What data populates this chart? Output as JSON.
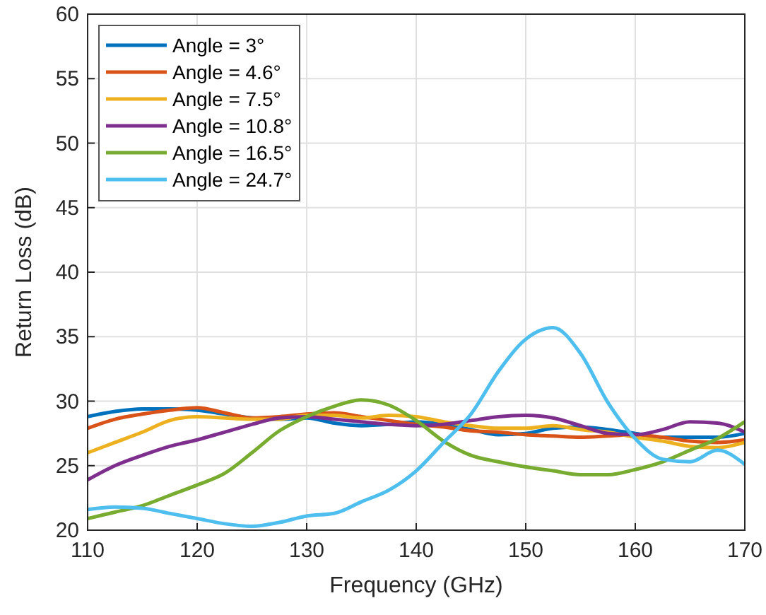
{
  "chart_data": {
    "type": "line",
    "xlabel": "Frequency (GHz)",
    "ylabel": "Return Loss (dB)",
    "xlim": [
      110,
      170
    ],
    "ylim": [
      20,
      60
    ],
    "xticks": [
      110,
      120,
      130,
      140,
      150,
      160,
      170
    ],
    "yticks": [
      20,
      25,
      30,
      35,
      40,
      45,
      50,
      55,
      60
    ],
    "grid": true,
    "legend": "top left",
    "line_style": "solid",
    "x": [
      110,
      112.5,
      115,
      117.5,
      120,
      122.5,
      125,
      127.5,
      130,
      132.5,
      135,
      137.5,
      140,
      142.5,
      145,
      147.5,
      150,
      152.5,
      155,
      157.5,
      160,
      162.5,
      165,
      167.5,
      170
    ],
    "series": [
      {
        "name": "Angle = 3°",
        "color": "#0072bd",
        "values": [
          28.8,
          29.2,
          29.4,
          29.4,
          29.3,
          29.0,
          28.7,
          28.6,
          28.7,
          28.3,
          28.1,
          28.2,
          28.4,
          28.2,
          27.8,
          27.4,
          27.5,
          27.9,
          28.0,
          27.8,
          27.5,
          27.2,
          27.2,
          27.2,
          27.5
        ]
      },
      {
        "name": "Angle = 4.6°",
        "color": "#d95319",
        "values": [
          27.9,
          28.6,
          29.0,
          29.3,
          29.5,
          29.1,
          28.7,
          28.8,
          29.0,
          29.1,
          28.8,
          28.5,
          28.2,
          28.0,
          27.7,
          27.6,
          27.4,
          27.3,
          27.2,
          27.3,
          27.4,
          27.2,
          26.9,
          26.8,
          27.0
        ]
      },
      {
        "name": "Angle = 7.5°",
        "color": "#edb120",
        "values": [
          26.0,
          26.8,
          27.6,
          28.5,
          28.8,
          28.7,
          28.6,
          28.6,
          28.9,
          28.9,
          28.7,
          28.9,
          28.8,
          28.4,
          28.1,
          27.9,
          27.9,
          28.1,
          27.8,
          27.6,
          27.2,
          26.9,
          26.5,
          26.4,
          26.8
        ]
      },
      {
        "name": "Angle = 10.8°",
        "color": "#7e2f8e",
        "values": [
          23.9,
          25.0,
          25.8,
          26.5,
          27.0,
          27.6,
          28.2,
          28.7,
          28.8,
          28.6,
          28.4,
          28.2,
          28.1,
          28.2,
          28.5,
          28.8,
          28.9,
          28.7,
          28.1,
          27.5,
          27.4,
          27.8,
          28.4,
          28.3,
          27.6
        ]
      },
      {
        "name": "Angle = 16.5°",
        "color": "#77ac30",
        "values": [
          20.9,
          21.4,
          21.9,
          22.7,
          23.5,
          24.4,
          26.0,
          27.7,
          28.8,
          29.6,
          30.1,
          29.7,
          28.5,
          26.9,
          25.8,
          25.3,
          24.9,
          24.6,
          24.3,
          24.3,
          24.7,
          25.3,
          26.2,
          27.1,
          28.4
        ]
      },
      {
        "name": "Angle = 24.7°",
        "color": "#4dbeee",
        "values": [
          21.6,
          21.8,
          21.7,
          21.3,
          20.9,
          20.5,
          20.3,
          20.6,
          21.1,
          21.3,
          22.2,
          23.1,
          24.6,
          26.8,
          29.0,
          32.3,
          34.8,
          35.7,
          33.7,
          29.9,
          27.1,
          25.5,
          25.3,
          26.2,
          25.1
        ]
      }
    ]
  }
}
